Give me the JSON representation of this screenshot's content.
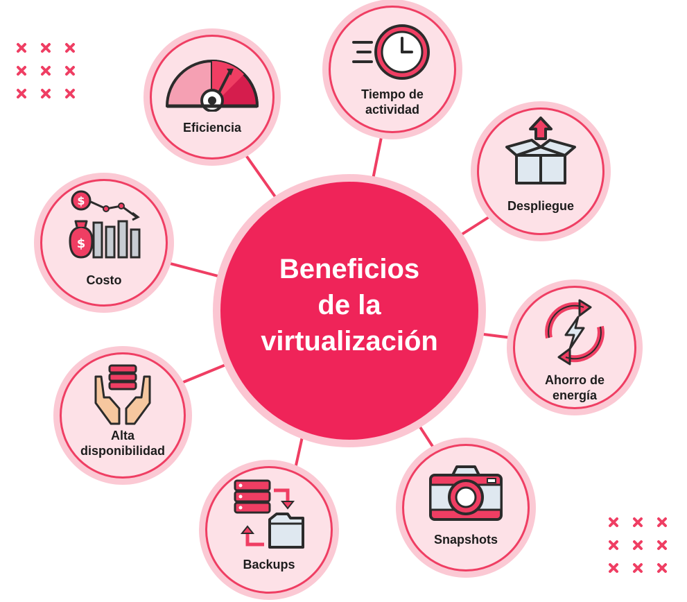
{
  "center": {
    "title_line1": "Beneficios",
    "title_line2": "de la",
    "title_line3": "virtualización"
  },
  "nodes": {
    "eficiencia": {
      "label": "Eficiencia",
      "icon": "speedometer-icon"
    },
    "tiempo": {
      "label_line1": "Tiempo de",
      "label_line2": "actividad",
      "icon": "clock-icon"
    },
    "despliegue": {
      "label": "Despliegue",
      "icon": "box-upload-icon"
    },
    "ahorro": {
      "label_line1": "Ahorro de",
      "label_line2": "energía",
      "icon": "energy-cycle-icon"
    },
    "snapshots": {
      "label": "Snapshots",
      "icon": "camera-icon"
    },
    "backups": {
      "label": "Backups",
      "icon": "server-backup-icon"
    },
    "alta": {
      "label_line1": "Alta",
      "label_line2": "disponibilidad",
      "icon": "hands-database-icon"
    },
    "costo": {
      "label": "Costo",
      "icon": "money-chart-icon"
    }
  },
  "colors": {
    "primary": "#ef2459",
    "border": "#ef3e63",
    "node_fill": "#fde1e7",
    "halo": "#fbc9d4",
    "dark": "#2b2b2b",
    "light_blue": "#dfe8f0"
  }
}
